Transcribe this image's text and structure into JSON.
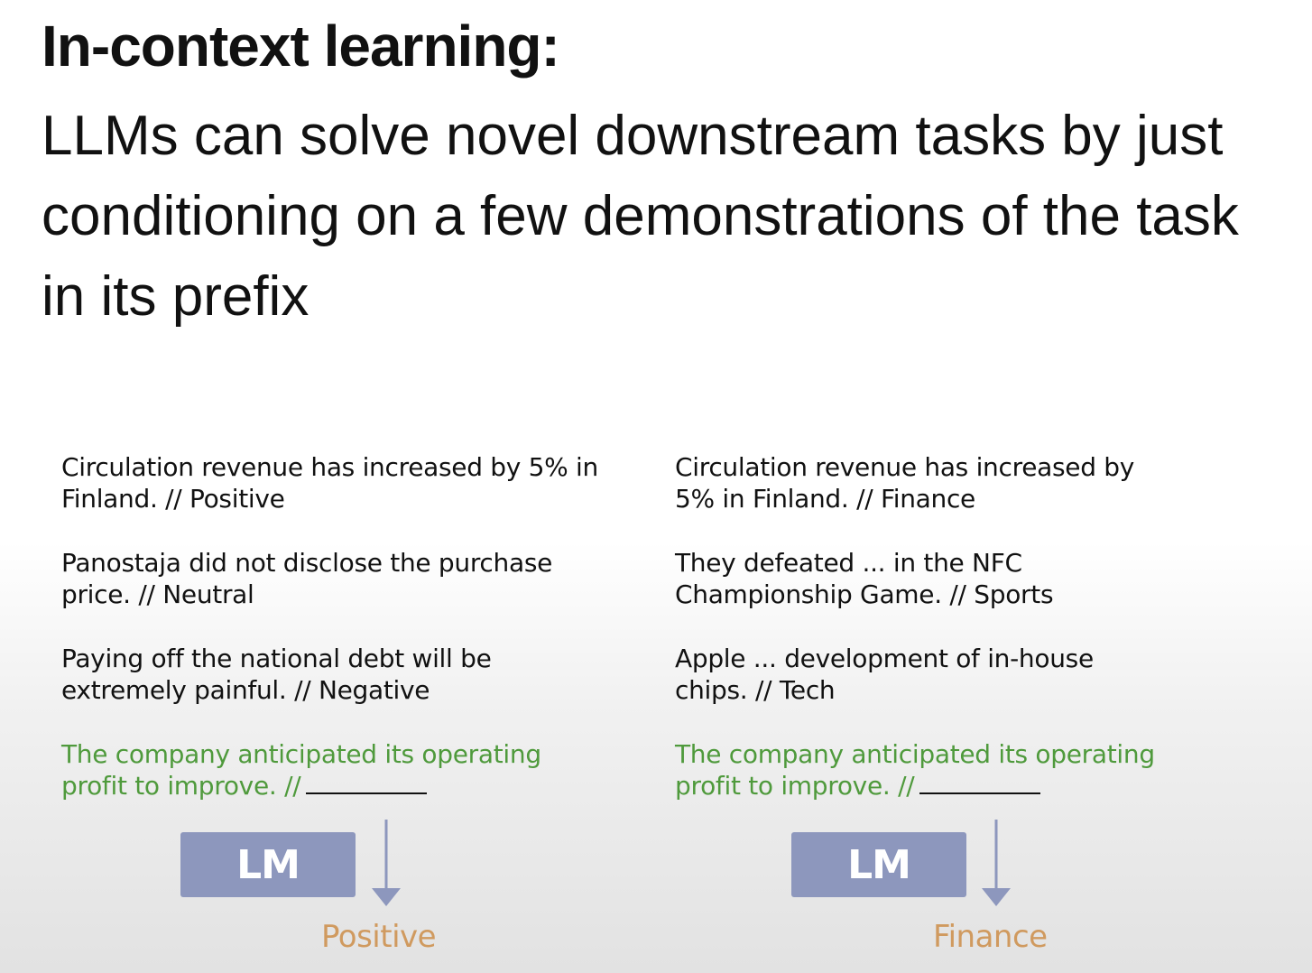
{
  "slide": {
    "title": "In-context learning:",
    "subtitle": "LLMs can solve novel downstream tasks by just conditioning on a few demonstrations of the task in its prefix"
  },
  "left": {
    "examples": [
      "Circulation revenue has increased by 5% in Finland. // Positive",
      "Panostaja did not disclose the purchase price. // Neutral",
      "Paying off the national debt will be extremely painful. // Negative"
    ],
    "query": "The company anticipated its operating profit to improve. //",
    "model_label": "LM",
    "answer": "Positive"
  },
  "right": {
    "examples": [
      "Circulation revenue has increased by 5% in Finland. // Finance",
      "They defeated ... in the NFC Championship Game. // Sports",
      "Apple ... development of in-house chips. // Tech"
    ],
    "query": "The company anticipated its operating profit to improve. //",
    "model_label": "LM",
    "answer": "Finance"
  },
  "colors": {
    "query_text": "#4f9a3c",
    "lm_box": "#8d97bd",
    "answer_text": "#d09a5f"
  },
  "icons": [
    "down-arrow-icon"
  ]
}
